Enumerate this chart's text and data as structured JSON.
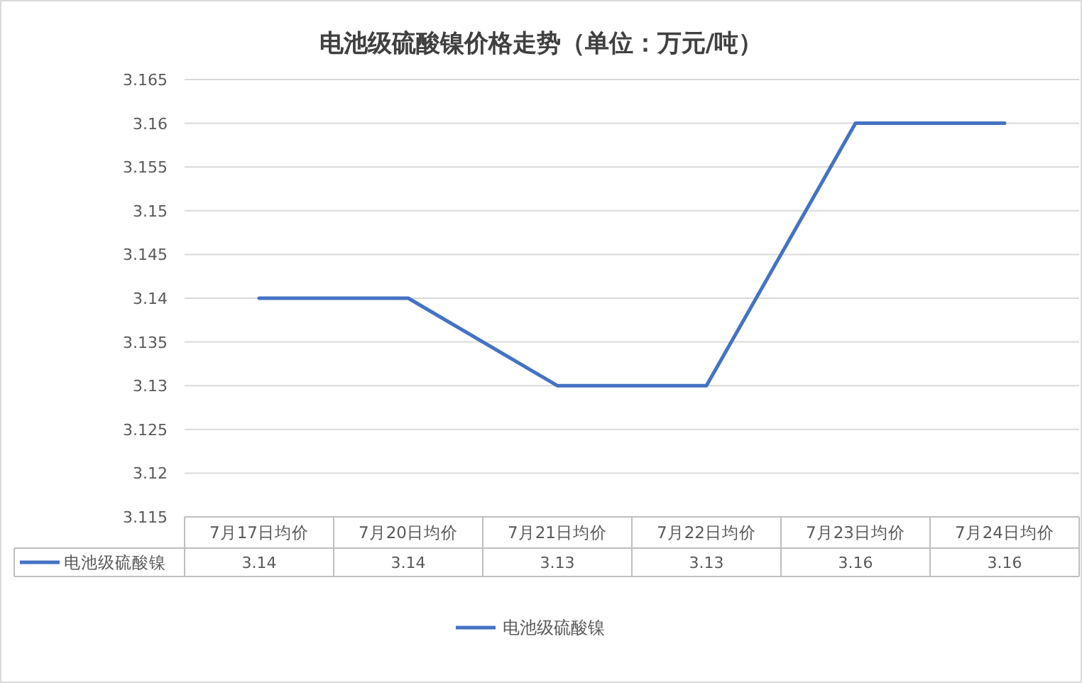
{
  "chart_data": {
    "type": "line",
    "title": "电池级硫酸镍价格走势（单位：万元/吨）",
    "categories": [
      "7月17日均价",
      "7月20日均价",
      "7月21日均价",
      "7月22日均价",
      "7月23日均价",
      "7月24日均价"
    ],
    "series": [
      {
        "name": "电池级硫酸镍",
        "color": "#4472c4",
        "values": [
          3.14,
          3.14,
          3.13,
          3.13,
          3.16,
          3.16
        ]
      }
    ],
    "ylim": [
      3.115,
      3.165
    ],
    "yticks": [
      3.115,
      3.12,
      3.125,
      3.13,
      3.135,
      3.14,
      3.145,
      3.15,
      3.155,
      3.16,
      3.165
    ],
    "grid": "y",
    "legend": "bottom",
    "data_labels": true
  }
}
